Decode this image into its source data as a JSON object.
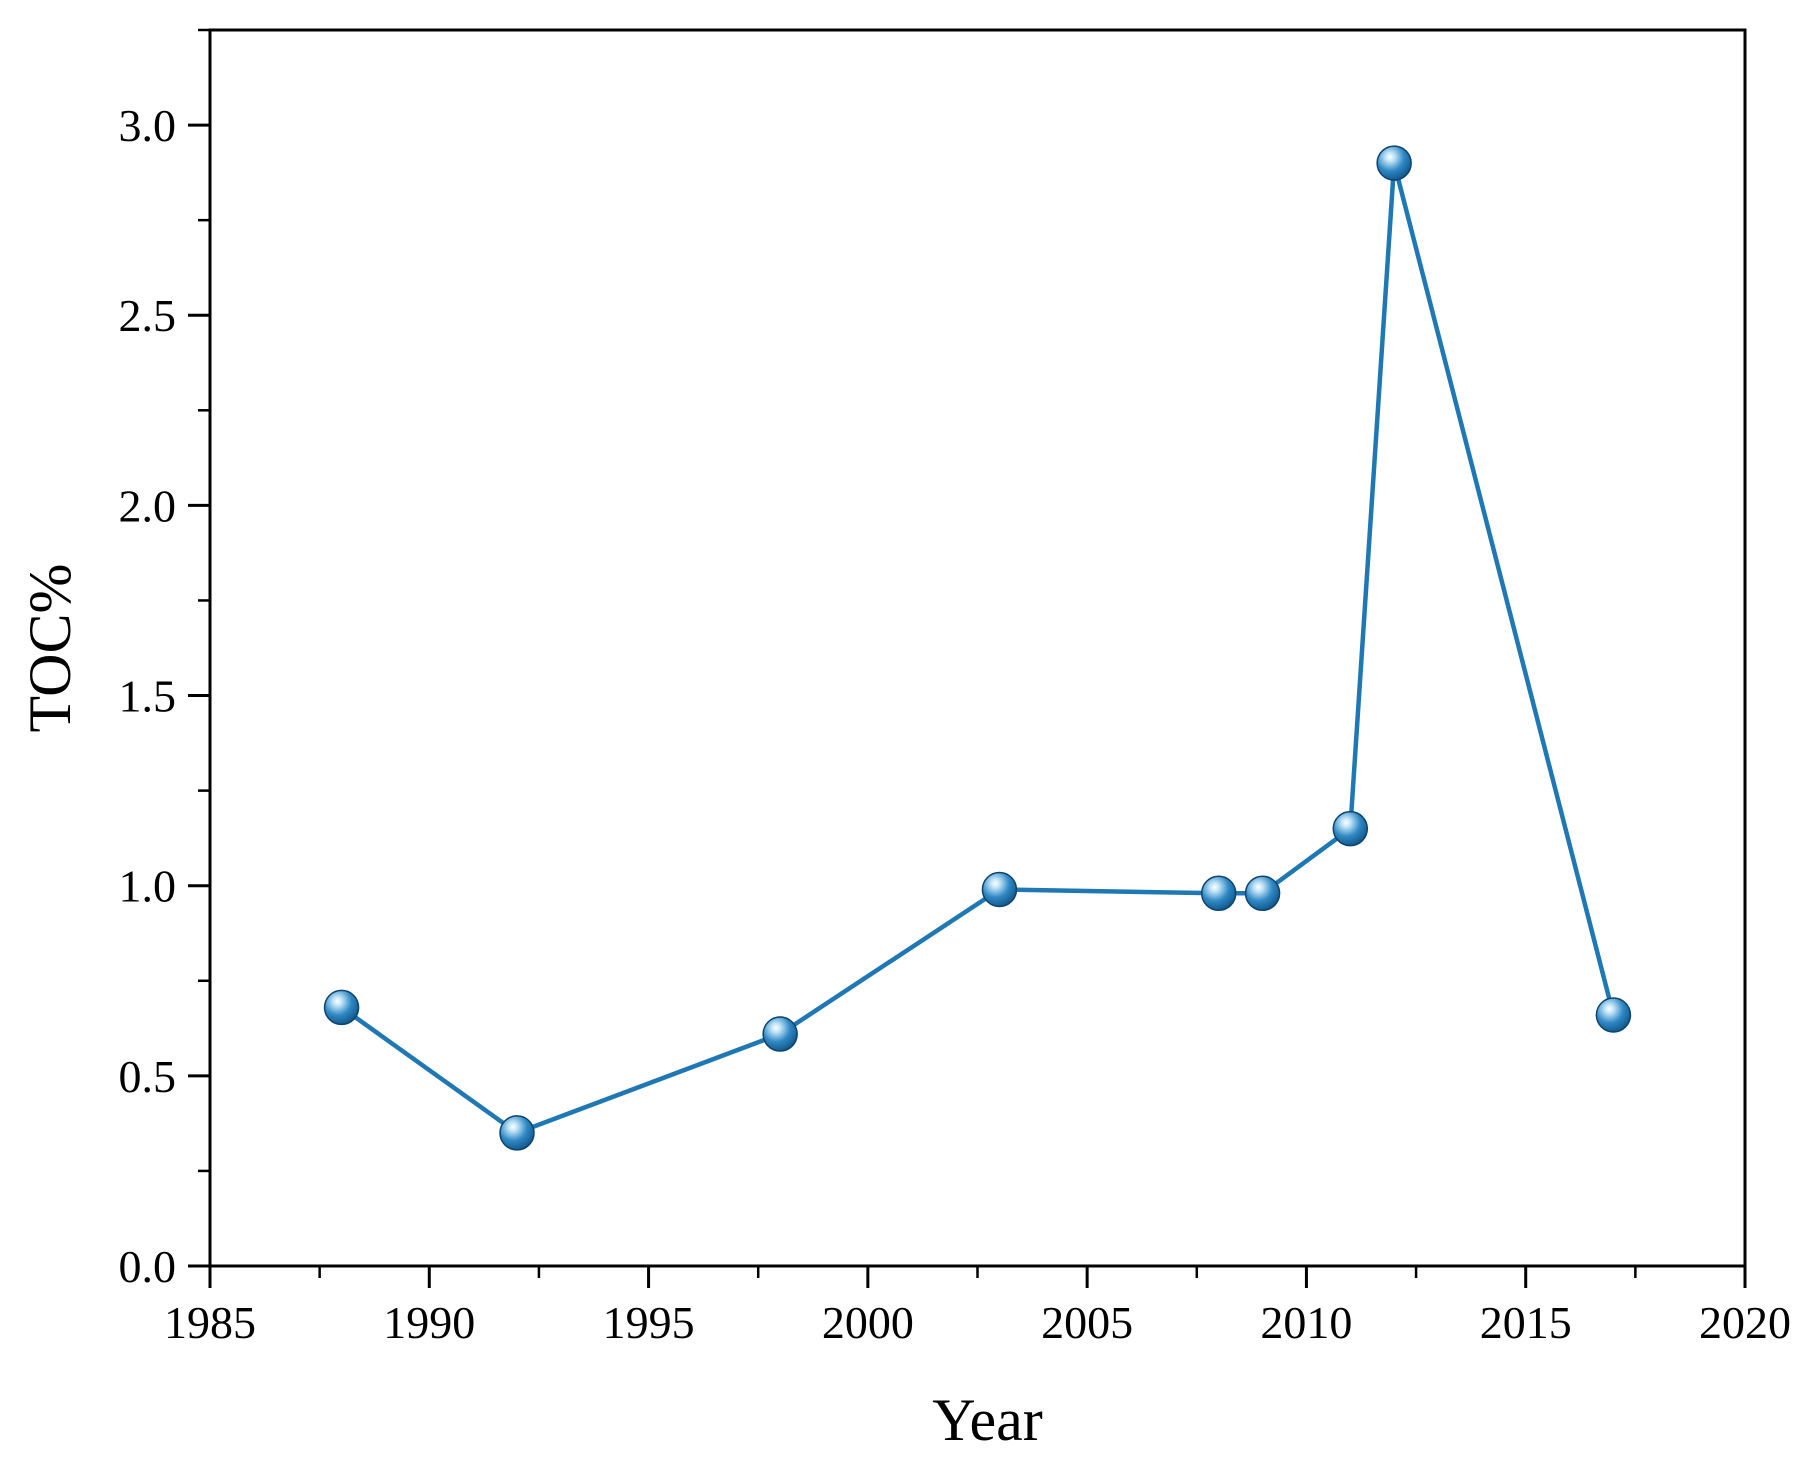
{
  "chart_data": {
    "type": "line",
    "title": "",
    "xlabel": "Year",
    "ylabel": "TOC%",
    "xlim": [
      1985,
      2020
    ],
    "ylim": [
      0,
      3.25
    ],
    "x_ticks": [
      1985,
      1990,
      1995,
      2000,
      2005,
      2010,
      2015,
      2020
    ],
    "x_tick_labels": [
      "1985",
      "1990",
      "1995",
      "2000",
      "2005",
      "2010",
      "2015",
      "2020"
    ],
    "y_ticks": [
      0,
      0.5,
      1.0,
      1.5,
      2.0,
      2.5,
      3.0
    ],
    "y_tick_labels": [
      "0.0",
      "0.5",
      "1.0",
      "1.5",
      "2.0",
      "2.5",
      "3.0"
    ],
    "grid": false,
    "series": [
      {
        "color": "#1f78b4",
        "x": [
          1988,
          1992,
          1998,
          2003,
          2008,
          2009,
          2011,
          2012,
          2017
        ],
        "y": [
          0.68,
          0.35,
          0.61,
          0.99,
          0.98,
          0.98,
          1.15,
          2.9,
          0.66
        ]
      }
    ]
  }
}
